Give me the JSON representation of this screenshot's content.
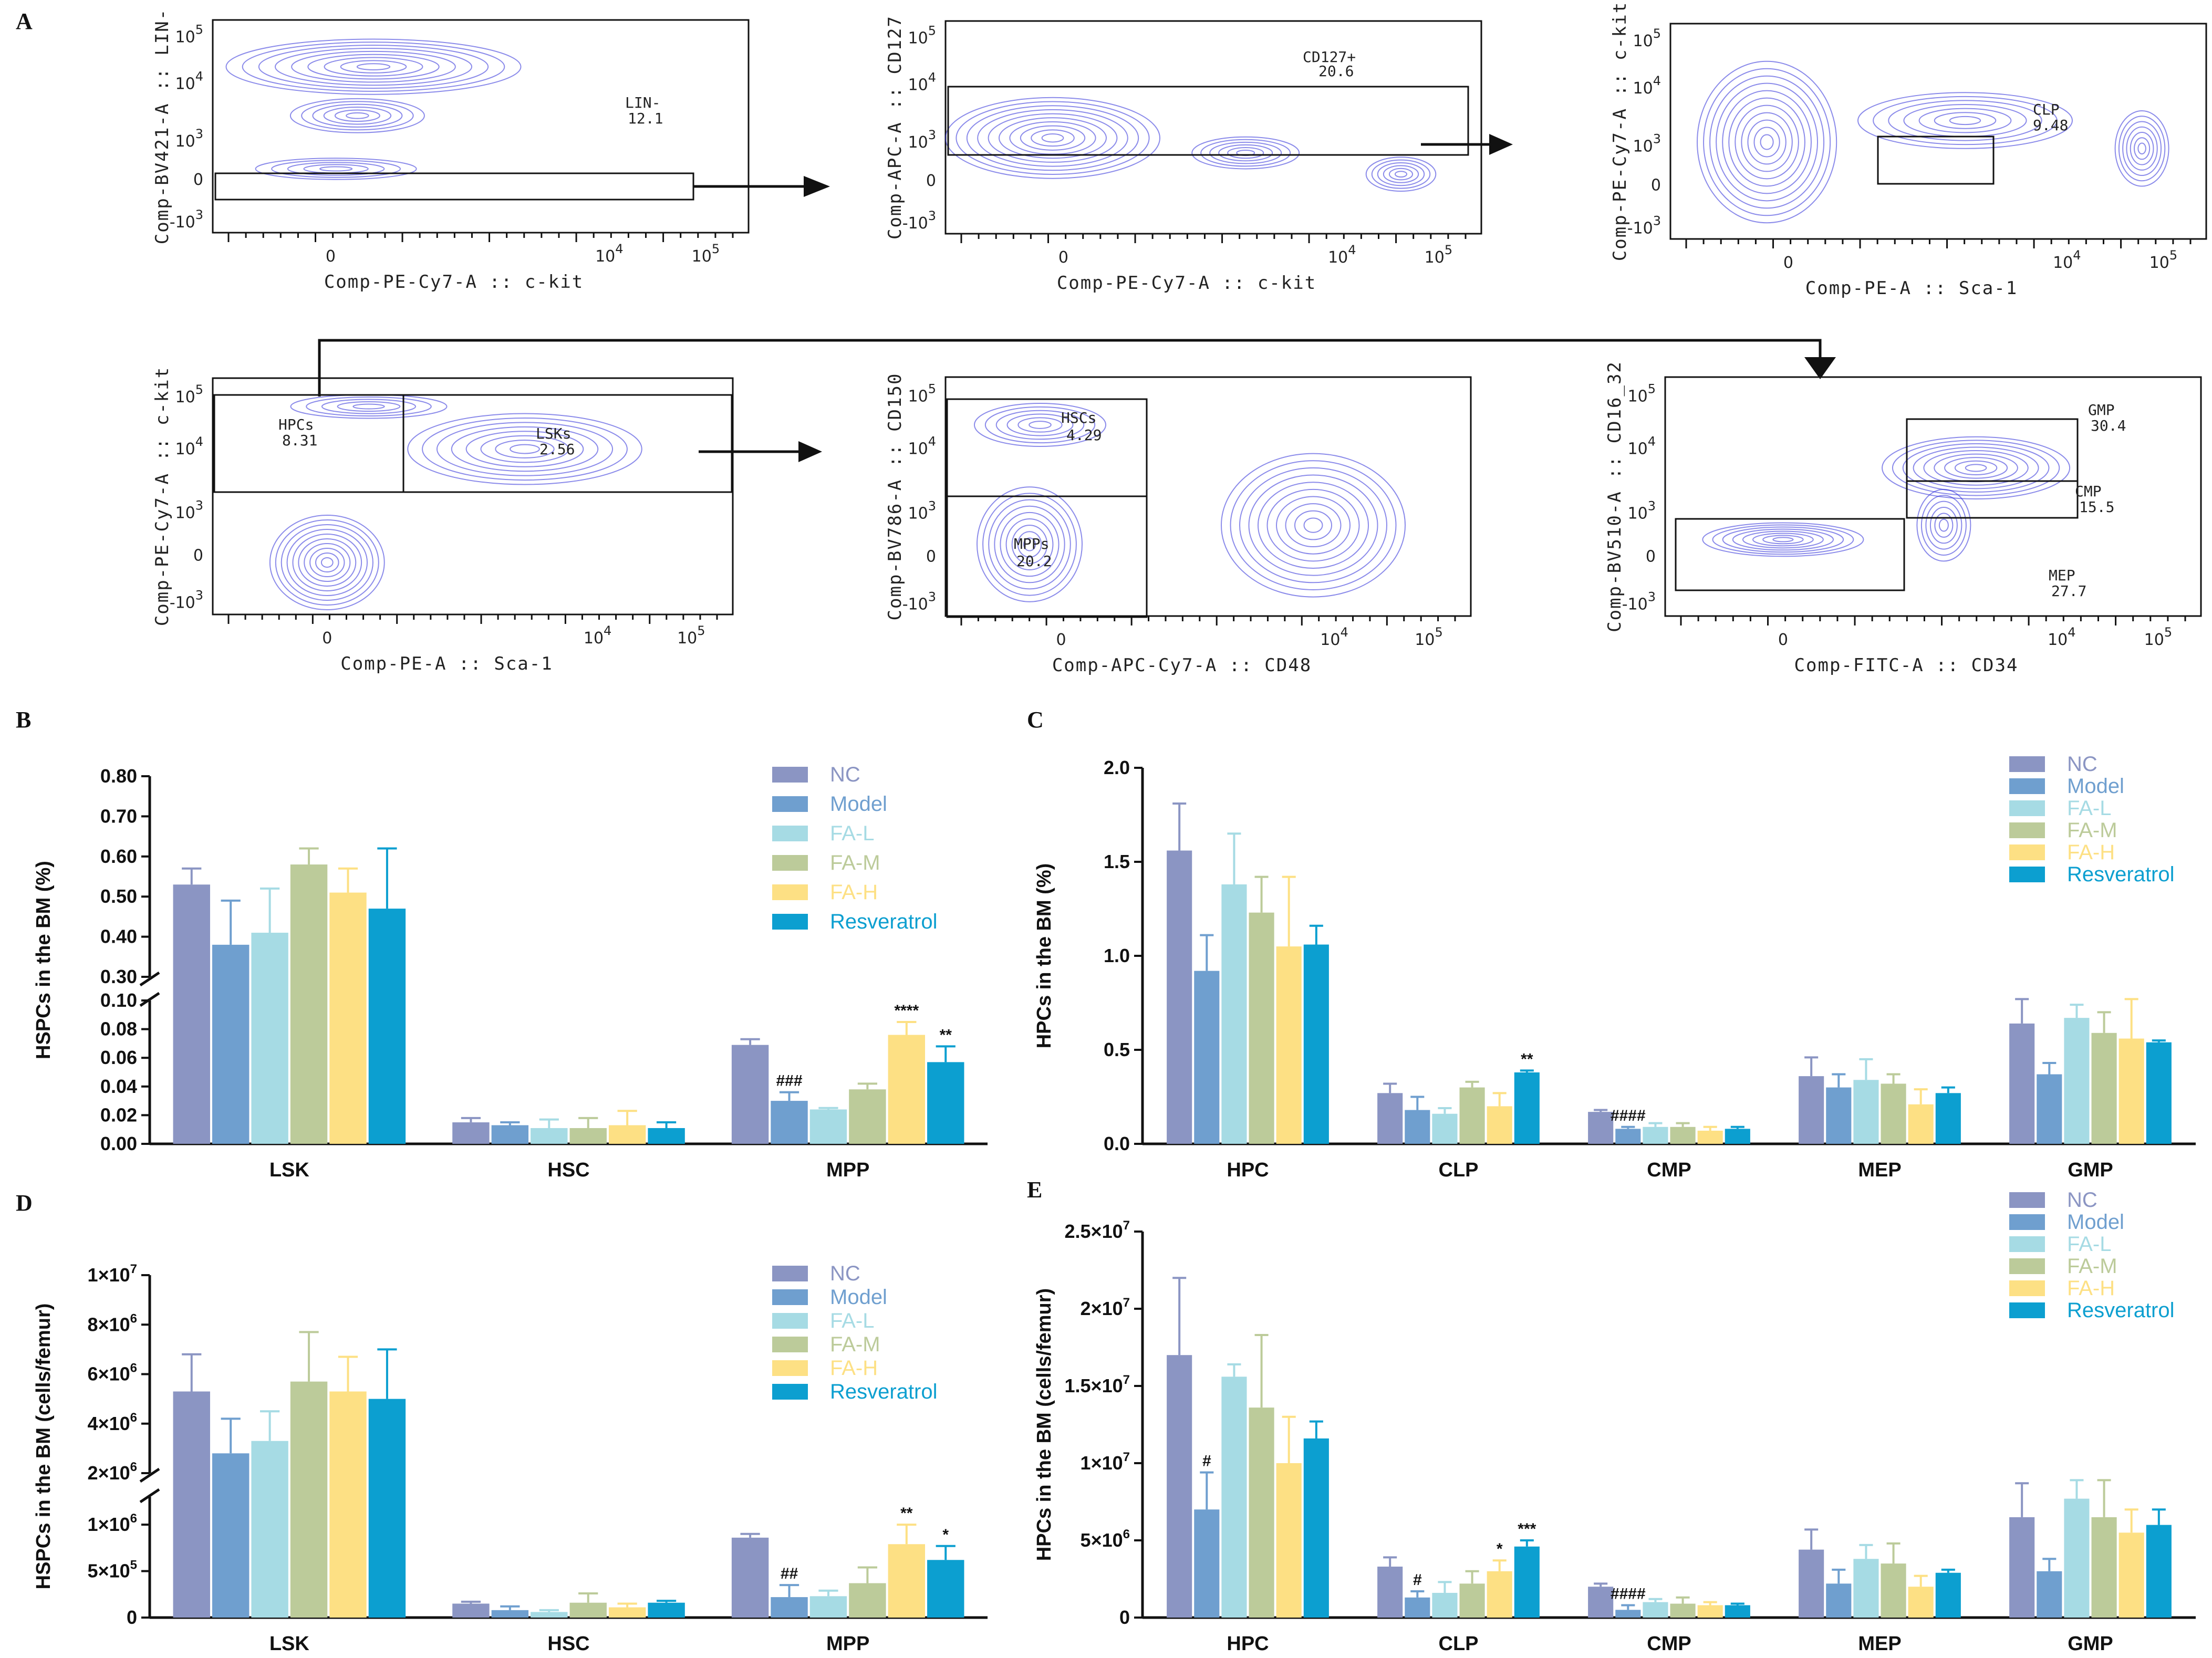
{
  "panel_labels": {
    "A": "A",
    "B": "B",
    "C": "C",
    "D": "D",
    "E": "E"
  },
  "colors": {
    "NC": "#8b95c3",
    "Model": "#6f9fcf",
    "FA-L": "#a6dbe4",
    "FA-M": "#bccb9a",
    "FA-H": "#fde084",
    "Resveratrol": "#0c9fd0",
    "contour": "#2b2bd8"
  },
  "flow": {
    "plot1": {
      "xlabel": "Comp-PE-Cy7-A :: c-kit",
      "ylabel": "Comp-BV421-A :: LIN-",
      "gates": [
        {
          "name": "LIN-",
          "value": "12.1"
        }
      ]
    },
    "plot2": {
      "xlabel": "Comp-PE-Cy7-A :: c-kit",
      "ylabel": "Comp-APC-A :: CD127",
      "gates": [
        {
          "name": "CD127+",
          "value": "20.6"
        }
      ]
    },
    "plot3": {
      "xlabel": "Comp-PE-A :: Sca-1",
      "ylabel": "Comp-PE-Cy7-A :: c-kit",
      "gates": [
        {
          "name": "CLP",
          "value": "9.48"
        }
      ]
    },
    "plot4": {
      "xlabel": "Comp-PE-A :: Sca-1",
      "ylabel": "Comp-PE-Cy7-A :: c-kit",
      "gates": [
        {
          "name": "HPCs",
          "value": "8.31"
        },
        {
          "name": "LSKs",
          "value": "2.56"
        }
      ]
    },
    "plot5": {
      "xlabel": "Comp-APC-Cy7-A :: CD48",
      "ylabel": "Comp-BV786-A :: CD150",
      "gates": [
        {
          "name": "HSCs",
          "value": "4.29"
        },
        {
          "name": "MPPs",
          "value": "20.2"
        }
      ]
    },
    "plot6": {
      "xlabel": "Comp-FITC-A :: CD34",
      "ylabel": "Comp-BV510-A :: CD16_32",
      "gates": [
        {
          "name": "GMP",
          "value": "30.4"
        },
        {
          "name": "CMP",
          "value": "15.5"
        },
        {
          "name": "MEP",
          "value": "27.7"
        }
      ]
    },
    "tick_labels": {
      "neg": "-10",
      "zero": "0",
      "e3": "10",
      "e4": "10",
      "e5": "10",
      "exp3": "3",
      "exp4": "4",
      "exp5": "5"
    }
  },
  "chart_data": [
    {
      "id": "B",
      "type": "bar",
      "ylabel": "HSPCs in the BM (%)",
      "categories": [
        "LSK",
        "HSC",
        "MPP"
      ],
      "y_axis_break": {
        "lower": [
          0,
          0.1
        ],
        "upper": [
          0.3,
          0.8
        ]
      },
      "yticks_lower": [
        "0.00",
        "0.02",
        "0.04",
        "0.06",
        "0.08",
        "0.10"
      ],
      "yticks_upper": [
        "0.30",
        "0.40",
        "0.50",
        "0.60",
        "0.70",
        "0.80"
      ],
      "legend": [
        "NC",
        "Model",
        "FA-L",
        "FA-M",
        "FA-H",
        "Resveratrol"
      ],
      "series": [
        {
          "name": "NC",
          "values": [
            0.53,
            0.015,
            0.069
          ],
          "errors": [
            0.04,
            0.003,
            0.004
          ]
        },
        {
          "name": "Model",
          "values": [
            0.38,
            0.013,
            0.03
          ],
          "errors": [
            0.11,
            0.002,
            0.006
          ]
        },
        {
          "name": "FA-L",
          "values": [
            0.41,
            0.011,
            0.024
          ],
          "errors": [
            0.11,
            0.006,
            0.001
          ]
        },
        {
          "name": "FA-M",
          "values": [
            0.58,
            0.011,
            0.038
          ],
          "errors": [
            0.04,
            0.007,
            0.004
          ]
        },
        {
          "name": "FA-H",
          "values": [
            0.51,
            0.013,
            0.076
          ],
          "errors": [
            0.06,
            0.01,
            0.009
          ]
        },
        {
          "name": "Resveratrol",
          "values": [
            0.47,
            0.011,
            0.057
          ],
          "errors": [
            0.15,
            0.004,
            0.011
          ]
        }
      ],
      "annotations": [
        {
          "category": "MPP",
          "series": "Model",
          "text": "###"
        },
        {
          "category": "MPP",
          "series": "FA-H",
          "text": "****"
        },
        {
          "category": "MPP",
          "series": "Resveratrol",
          "text": "**"
        }
      ]
    },
    {
      "id": "C",
      "type": "bar",
      "ylabel": "HPCs in the BM (%)",
      "categories": [
        "HPC",
        "CLP",
        "CMP",
        "MEP",
        "GMP"
      ],
      "ylim": [
        0,
        2.0
      ],
      "yticks": [
        "0.0",
        "0.5",
        "1.0",
        "1.5",
        "2.0"
      ],
      "legend": [
        "NC",
        "Model",
        "FA-L",
        "FA-M",
        "FA-H",
        "Resveratrol"
      ],
      "series": [
        {
          "name": "NC",
          "values": [
            1.56,
            0.27,
            0.17,
            0.36,
            0.64
          ],
          "errors": [
            0.25,
            0.05,
            0.01,
            0.1,
            0.13
          ]
        },
        {
          "name": "Model",
          "values": [
            0.92,
            0.18,
            0.08,
            0.3,
            0.37
          ],
          "errors": [
            0.19,
            0.07,
            0.01,
            0.07,
            0.06
          ]
        },
        {
          "name": "FA-L",
          "values": [
            1.38,
            0.16,
            0.09,
            0.34,
            0.67
          ],
          "errors": [
            0.27,
            0.03,
            0.02,
            0.11,
            0.07
          ]
        },
        {
          "name": "FA-M",
          "values": [
            1.23,
            0.3,
            0.09,
            0.32,
            0.59
          ],
          "errors": [
            0.19,
            0.03,
            0.02,
            0.05,
            0.11
          ]
        },
        {
          "name": "FA-H",
          "values": [
            1.05,
            0.2,
            0.07,
            0.21,
            0.56
          ],
          "errors": [
            0.37,
            0.07,
            0.02,
            0.08,
            0.21
          ]
        },
        {
          "name": "Resveratrol",
          "values": [
            1.06,
            0.38,
            0.08,
            0.27,
            0.54
          ],
          "errors": [
            0.1,
            0.01,
            0.01,
            0.03,
            0.01
          ]
        }
      ],
      "annotations": [
        {
          "category": "CLP",
          "series": "Resveratrol",
          "text": "**"
        },
        {
          "category": "CMP",
          "series": "Model",
          "text": "####"
        }
      ]
    },
    {
      "id": "D",
      "type": "bar",
      "ylabel": "HSPCs in the BM (cells/femur)",
      "categories": [
        "LSK",
        "HSC",
        "MPP"
      ],
      "y_axis_break": {
        "lower": [
          0,
          1300000
        ],
        "upper": [
          2000000,
          10000000
        ]
      },
      "yticks_lower": [
        {
          "v": 0,
          "t": "0"
        },
        {
          "v": 500000,
          "t": "5×10",
          "e": "5"
        },
        {
          "v": 1000000,
          "t": "1×10",
          "e": "6"
        }
      ],
      "yticks_upper": [
        {
          "v": 2000000,
          "t": "2×10",
          "e": "6"
        },
        {
          "v": 4000000,
          "t": "4×10",
          "e": "6"
        },
        {
          "v": 6000000,
          "t": "6×10",
          "e": "6"
        },
        {
          "v": 8000000,
          "t": "8×10",
          "e": "6"
        },
        {
          "v": 10000000,
          "t": "1×10",
          "e": "7"
        }
      ],
      "legend": [
        "NC",
        "Model",
        "FA-L",
        "FA-M",
        "FA-H",
        "Resveratrol"
      ],
      "series": [
        {
          "name": "NC",
          "values": [
            5300000,
            150000,
            860000
          ],
          "errors": [
            1500000,
            20000,
            40000
          ]
        },
        {
          "name": "Model",
          "values": [
            2800000,
            80000,
            220000
          ],
          "errors": [
            1400000,
            40000,
            130000
          ]
        },
        {
          "name": "FA-L",
          "values": [
            3300000,
            60000,
            230000
          ],
          "errors": [
            1200000,
            20000,
            60000
          ]
        },
        {
          "name": "FA-M",
          "values": [
            5700000,
            160000,
            370000
          ],
          "errors": [
            2000000,
            100000,
            170000
          ]
        },
        {
          "name": "FA-H",
          "values": [
            5300000,
            110000,
            790000
          ],
          "errors": [
            1400000,
            40000,
            210000
          ]
        },
        {
          "name": "Resveratrol",
          "values": [
            5000000,
            160000,
            620000
          ],
          "errors": [
            2000000,
            20000,
            150000
          ]
        }
      ],
      "annotations": [
        {
          "category": "MPP",
          "series": "Model",
          "text": "##"
        },
        {
          "category": "MPP",
          "series": "FA-H",
          "text": "**"
        },
        {
          "category": "MPP",
          "series": "Resveratrol",
          "text": "*"
        }
      ]
    },
    {
      "id": "E",
      "type": "bar",
      "ylabel": "HPCs in the BM (cells/femur)",
      "categories": [
        "HPC",
        "CLP",
        "CMP",
        "MEP",
        "GMP"
      ],
      "ylim": [
        0,
        25000000
      ],
      "yticks": [
        {
          "v": 0,
          "t": "0"
        },
        {
          "v": 5000000,
          "t": "5×10",
          "e": "6"
        },
        {
          "v": 10000000,
          "t": "1×10",
          "e": "7"
        },
        {
          "v": 15000000,
          "t": "1.5×10",
          "e": "7"
        },
        {
          "v": 20000000,
          "t": "2×10",
          "e": "7"
        },
        {
          "v": 25000000,
          "t": "2.5×10",
          "e": "7"
        }
      ],
      "legend": [
        "NC",
        "Model",
        "FA-L",
        "FA-M",
        "FA-H",
        "Resveratrol"
      ],
      "series": [
        {
          "name": "NC",
          "values": [
            17000000,
            3300000,
            2000000,
            4400000,
            6500000
          ],
          "errors": [
            5000000,
            600000,
            200000,
            1300000,
            2200000
          ]
        },
        {
          "name": "Model",
          "values": [
            7000000,
            1300000,
            500000,
            2200000,
            3000000
          ],
          "errors": [
            2400000,
            400000,
            300000,
            900000,
            800000
          ]
        },
        {
          "name": "FA-L",
          "values": [
            15600000,
            1600000,
            1000000,
            3800000,
            7700000
          ],
          "errors": [
            800000,
            700000,
            200000,
            900000,
            1200000
          ]
        },
        {
          "name": "FA-M",
          "values": [
            13600000,
            2200000,
            900000,
            3500000,
            6500000
          ],
          "errors": [
            4700000,
            800000,
            400000,
            1300000,
            2400000
          ]
        },
        {
          "name": "FA-H",
          "values": [
            10000000,
            3000000,
            800000,
            2000000,
            5500000
          ],
          "errors": [
            3000000,
            700000,
            200000,
            700000,
            1500000
          ]
        },
        {
          "name": "Resveratrol",
          "values": [
            11600000,
            4600000,
            800000,
            2900000,
            6000000
          ],
          "errors": [
            1100000,
            400000,
            100000,
            200000,
            1000000
          ]
        }
      ],
      "annotations": [
        {
          "category": "HPC",
          "series": "Model",
          "text": "#"
        },
        {
          "category": "CLP",
          "series": "Model",
          "text": "#"
        },
        {
          "category": "CLP",
          "series": "FA-H",
          "text": "*"
        },
        {
          "category": "CLP",
          "series": "Resveratrol",
          "text": "***"
        },
        {
          "category": "CMP",
          "series": "Model",
          "text": "####"
        }
      ]
    }
  ]
}
